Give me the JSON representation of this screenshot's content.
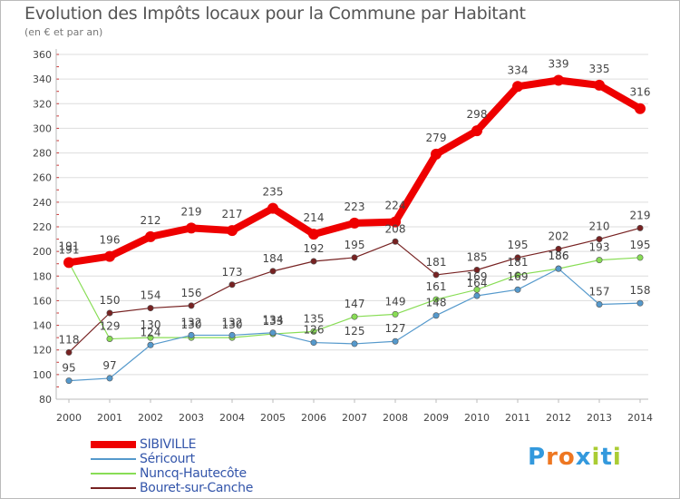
{
  "chart_data": {
    "type": "line",
    "title": "Evolution des Impôts locaux pour la Commune par Habitant",
    "subtitle": "(en € et par an)",
    "xlabel": "",
    "ylabel": "",
    "x": [
      "2000",
      "2001",
      "2002",
      "2003",
      "2004",
      "2005",
      "2006",
      "2007",
      "2008",
      "2009",
      "2010",
      "2011",
      "2012",
      "2013",
      "2014"
    ],
    "ylim": [
      80,
      360
    ],
    "yticks": [
      "80",
      "100",
      "120",
      "140",
      "160",
      "180",
      "200",
      "220",
      "240",
      "260",
      "280",
      "300",
      "320",
      "340",
      "360"
    ],
    "grid": "horizontal",
    "legend_position": "bottom-left",
    "series": [
      {
        "name": "SIBIVILLE",
        "color": "#ee0000",
        "values": [
          191,
          196,
          212,
          219,
          217,
          235,
          214,
          223,
          224,
          279,
          298,
          334,
          339,
          335,
          316
        ],
        "labels": [
          "191",
          "196",
          "212",
          "219",
          "217",
          "235",
          "214",
          "223",
          "224",
          "279",
          "298",
          "334",
          "339",
          "335",
          "316"
        ]
      },
      {
        "name": "Séricourt",
        "color": "#5599cc",
        "values": [
          95,
          97,
          124,
          132,
          132,
          134,
          126,
          125,
          127,
          148,
          164,
          169,
          186,
          157,
          158
        ],
        "labels": [
          "95",
          "97",
          "124",
          "132",
          "132",
          "134",
          "126",
          "125",
          "127",
          "148",
          "164",
          "169",
          "186",
          "157",
          "158"
        ]
      },
      {
        "name": "Nuncq-Hautecôte",
        "color": "#88dd55",
        "values": [
          191,
          129,
          130,
          130,
          130,
          133,
          135,
          147,
          149,
          161,
          169,
          181,
          186,
          193,
          195
        ],
        "labels": [
          "191",
          "129",
          "130",
          "130",
          "130",
          "133",
          "135",
          "147",
          "149",
          "161",
          "169",
          "181",
          "186",
          "193",
          "195"
        ]
      },
      {
        "name": "Bouret-sur-Canche",
        "color": "#772222",
        "values": [
          118,
          150,
          154,
          156,
          173,
          184,
          192,
          195,
          208,
          181,
          185,
          195,
          202,
          210,
          219
        ],
        "labels": [
          "118",
          "150",
          "154",
          "156",
          "173",
          "184",
          "192",
          "195",
          "208",
          "181",
          "185",
          "195",
          "202",
          "210",
          "219"
        ]
      }
    ]
  },
  "logo": {
    "letters": [
      "P",
      "r",
      "o",
      "x",
      "i",
      "t",
      "i"
    ],
    "colors": [
      "#3399dd",
      "#ee7722",
      "#ee7722",
      "#3399dd",
      "#aacc33",
      "#3399dd",
      "#aacc33"
    ]
  }
}
